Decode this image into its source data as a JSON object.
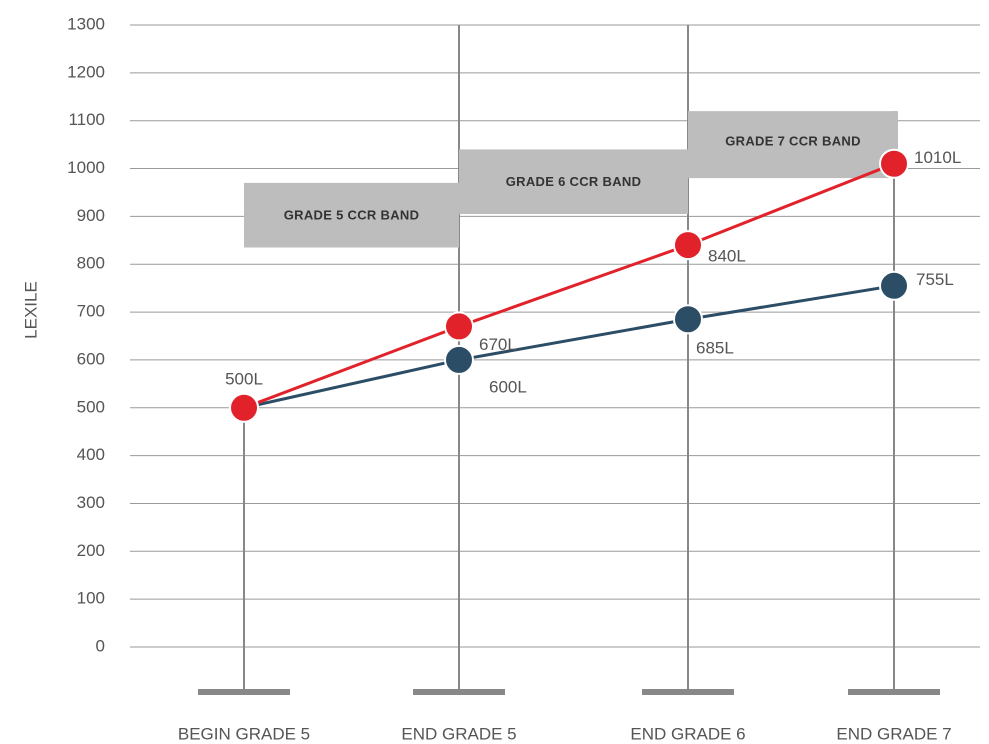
{
  "chart_data": {
    "type": "line",
    "ylabel": "LEXILE",
    "categories": [
      "BEGIN GRADE 5",
      "END GRADE 5",
      "END GRADE 6",
      "END GRADE 7"
    ],
    "series": [
      {
        "name": "Blue path",
        "color": "#2b4d66",
        "values": [
          500,
          600,
          685,
          755
        ],
        "value_labels": [
          null,
          "600L",
          "685L",
          "755L"
        ]
      },
      {
        "name": "Red path",
        "color": "#e1222b",
        "values": [
          500,
          670,
          840,
          1010
        ],
        "value_labels": [
          "500L",
          "670L",
          "840L",
          "1010L"
        ]
      }
    ],
    "bands": [
      {
        "label": "GRADE 5 CCR BAND",
        "from": 835,
        "to": 970
      },
      {
        "label": "GRADE 6 CCR BAND",
        "from": 905,
        "to": 1040
      },
      {
        "label": "GRADE 7 CCR BAND",
        "from": 980,
        "to": 1120
      }
    ],
    "ylim": [
      0,
      1300
    ],
    "yticks": [
      0,
      100,
      200,
      300,
      400,
      500,
      600,
      700,
      800,
      900,
      1000,
      1100,
      1200,
      1300
    ],
    "grid": true
  }
}
